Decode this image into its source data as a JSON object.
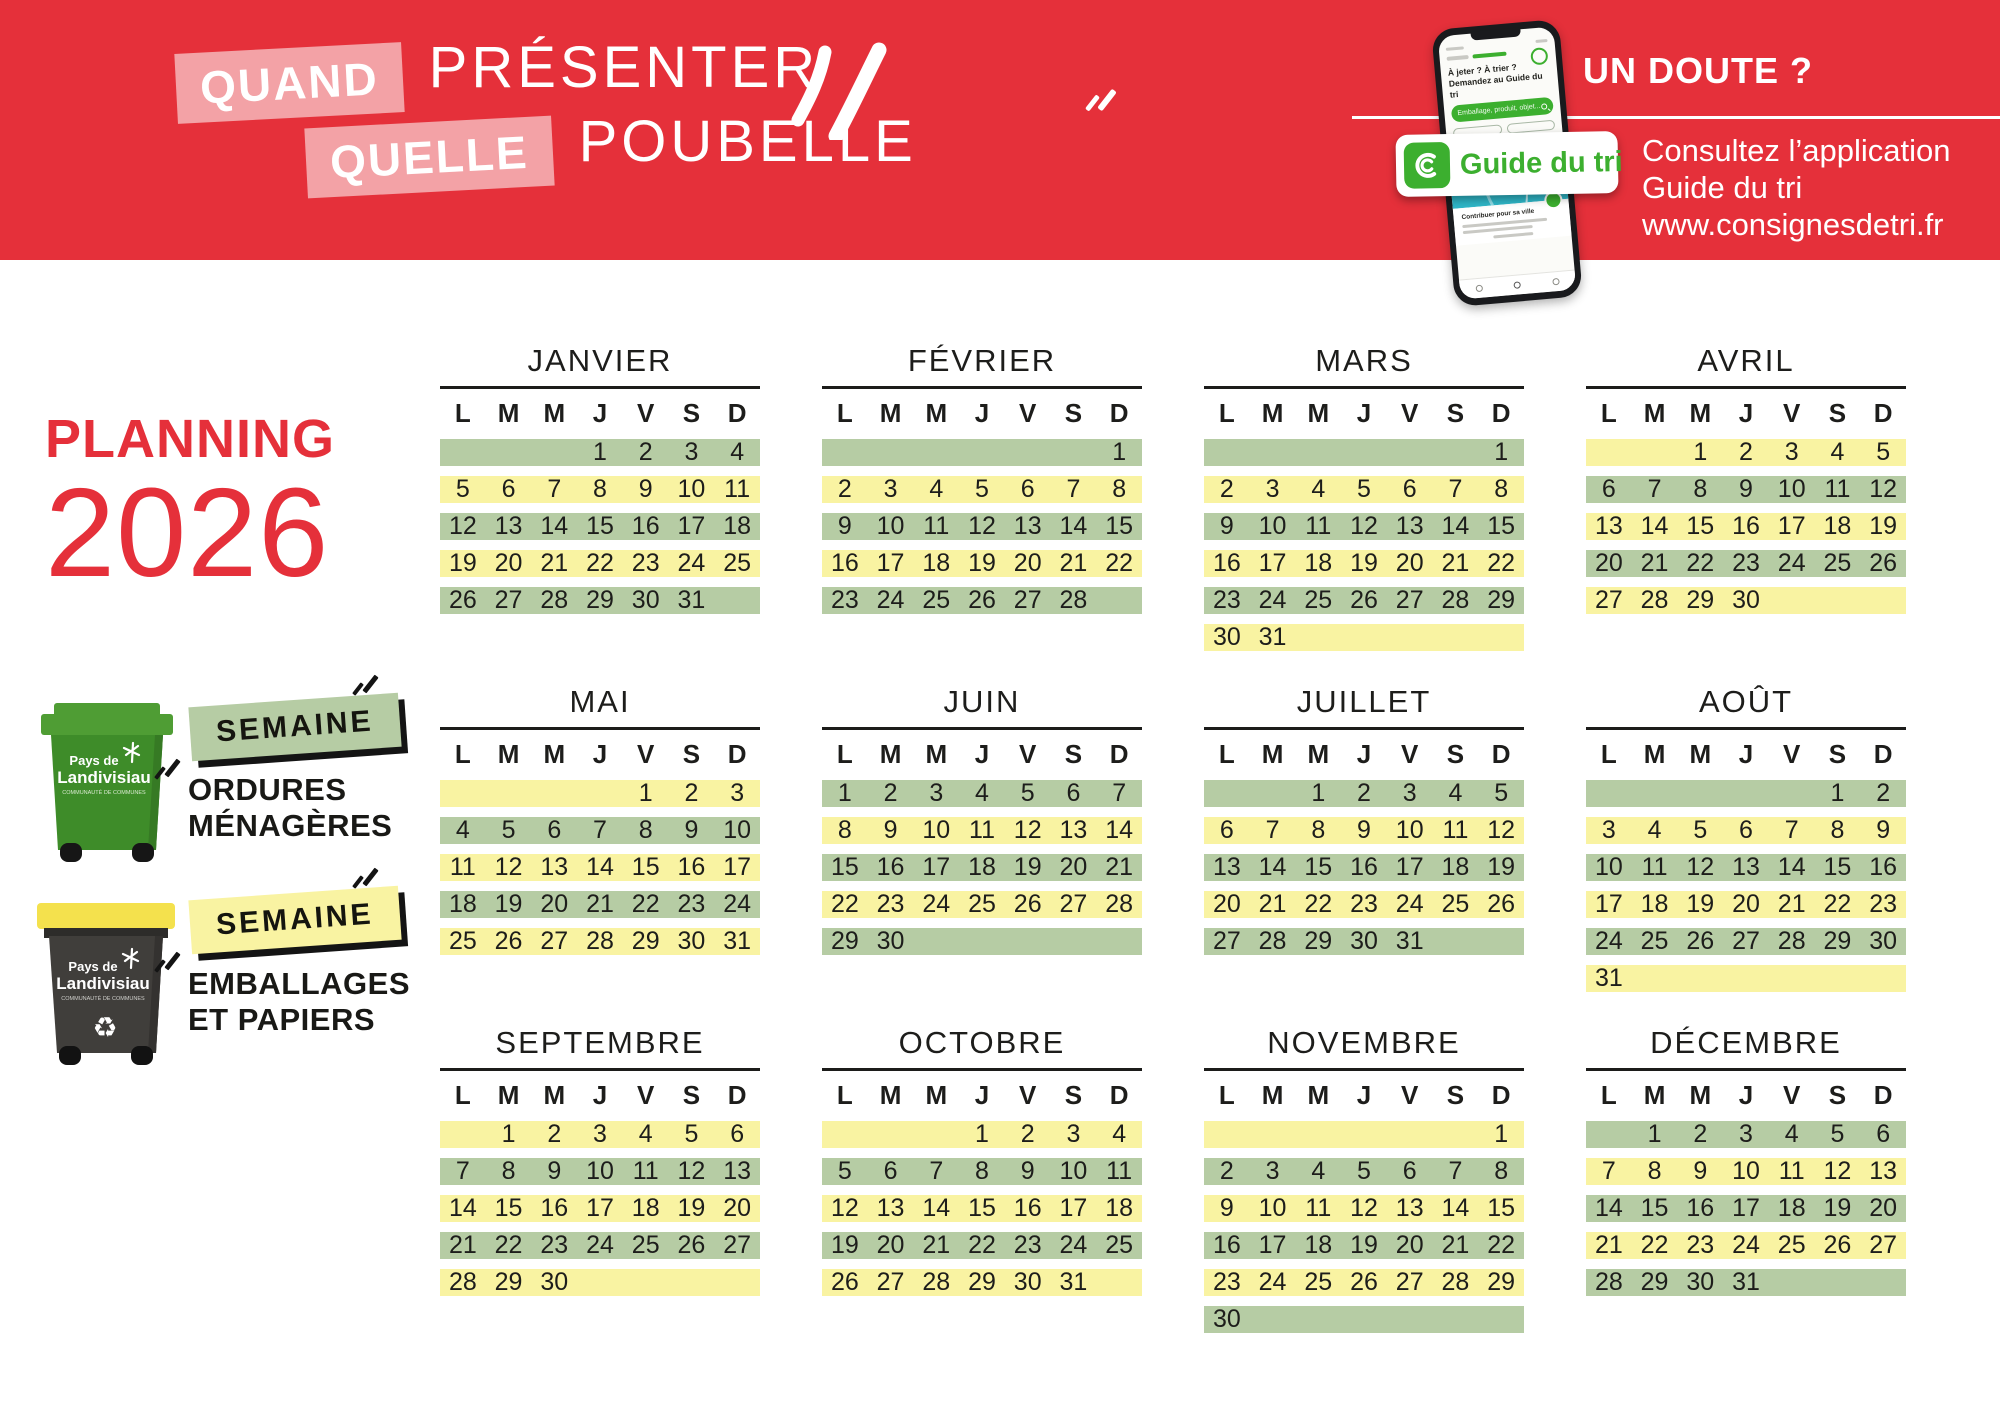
{
  "palette": {
    "red": "#e5303a",
    "pink": "#f3a2a6",
    "green_band": "#b6cca4",
    "yellow_band": "#f9f3a2",
    "app_green": "#3caf2f",
    "ink": "#1d1d1b",
    "bin_green": "#3e8c29",
    "bin_green_lid": "#4f9d34",
    "bin_dark": "#403e3b",
    "bin_yellow_lid": "#f4e14d",
    "map_teal": "#2fb7c8"
  },
  "banner": {
    "title_line1_tag": "QUAND",
    "title_line1_rest": "PRÉSENTER",
    "title_line2_tag": "QUELLE",
    "title_line2_rest": "POUBELLE",
    "doubt": "UN DOUTE ?",
    "consult_line1": "Consultez l’application",
    "consult_line2": "Guide du tri",
    "consult_line3": "www.consignesdetri.fr",
    "badge_label": "Guide du tri"
  },
  "phone": {
    "question_line1": "À jeter ? À trier ?",
    "question_line2": "Demandez au Guide du tri",
    "search_placeholder": "Emballage, produit, objet...",
    "participate": "Je participe",
    "contribute": "Contribuer pour sa ville"
  },
  "planning": {
    "title": "PLANNING",
    "year": "2026"
  },
  "legend": {
    "green": {
      "tag": "SEMAINE",
      "line1": "ORDURES",
      "line2": "MÉNAGÈRES"
    },
    "yellow": {
      "tag": "SEMAINE",
      "line1": "EMBALLAGES",
      "line2": "ET PAPIERS"
    }
  },
  "bin_logo": {
    "line1": "Pays de",
    "line2": "Landivisiau",
    "line3": "COMMUNAUTÉ DE COMMUNES"
  },
  "icons": {
    "recycle": "♻"
  },
  "calendar": {
    "day_headers": [
      "L",
      "M",
      "M",
      "J",
      "V",
      "S",
      "D"
    ],
    "months": [
      {
        "name": "JANVIER",
        "weeks": [
          {
            "color": "green",
            "days": [
              "",
              "",
              "",
              "1",
              "2",
              "3",
              "4"
            ]
          },
          {
            "color": "yellow",
            "days": [
              "5",
              "6",
              "7",
              "8",
              "9",
              "10",
              "11"
            ]
          },
          {
            "color": "green",
            "days": [
              "12",
              "13",
              "14",
              "15",
              "16",
              "17",
              "18"
            ]
          },
          {
            "color": "yellow",
            "days": [
              "19",
              "20",
              "21",
              "22",
              "23",
              "24",
              "25"
            ]
          },
          {
            "color": "green",
            "days": [
              "26",
              "27",
              "28",
              "29",
              "30",
              "31",
              ""
            ]
          }
        ]
      },
      {
        "name": "FÉVRIER",
        "weeks": [
          {
            "color": "green",
            "days": [
              "",
              "",
              "",
              "",
              "",
              "",
              "1"
            ]
          },
          {
            "color": "yellow",
            "days": [
              "2",
              "3",
              "4",
              "5",
              "6",
              "7",
              "8"
            ]
          },
          {
            "color": "green",
            "days": [
              "9",
              "10",
              "11",
              "12",
              "13",
              "14",
              "15"
            ]
          },
          {
            "color": "yellow",
            "days": [
              "16",
              "17",
              "18",
              "19",
              "20",
              "21",
              "22"
            ]
          },
          {
            "color": "green",
            "days": [
              "23",
              "24",
              "25",
              "26",
              "27",
              "28",
              ""
            ]
          }
        ]
      },
      {
        "name": "MARS",
        "weeks": [
          {
            "color": "green",
            "days": [
              "",
              "",
              "",
              "",
              "",
              "",
              "1"
            ]
          },
          {
            "color": "yellow",
            "days": [
              "2",
              "3",
              "4",
              "5",
              "6",
              "7",
              "8"
            ]
          },
          {
            "color": "green",
            "days": [
              "9",
              "10",
              "11",
              "12",
              "13",
              "14",
              "15"
            ]
          },
          {
            "color": "yellow",
            "days": [
              "16",
              "17",
              "18",
              "19",
              "20",
              "21",
              "22"
            ]
          },
          {
            "color": "green",
            "days": [
              "23",
              "24",
              "25",
              "26",
              "27",
              "28",
              "29"
            ]
          },
          {
            "color": "yellow",
            "days": [
              "30",
              "31",
              "",
              "",
              "",
              "",
              ""
            ]
          }
        ]
      },
      {
        "name": "AVRIL",
        "weeks": [
          {
            "color": "yellow",
            "days": [
              "",
              "",
              "1",
              "2",
              "3",
              "4",
              "5"
            ]
          },
          {
            "color": "green",
            "days": [
              "6",
              "7",
              "8",
              "9",
              "10",
              "11",
              "12"
            ]
          },
          {
            "color": "yellow",
            "days": [
              "13",
              "14",
              "15",
              "16",
              "17",
              "18",
              "19"
            ]
          },
          {
            "color": "green",
            "days": [
              "20",
              "21",
              "22",
              "23",
              "24",
              "25",
              "26"
            ]
          },
          {
            "color": "yellow",
            "days": [
              "27",
              "28",
              "29",
              "30",
              "",
              "",
              ""
            ]
          }
        ]
      },
      {
        "name": "MAI",
        "weeks": [
          {
            "color": "yellow",
            "days": [
              "",
              "",
              "",
              "",
              "1",
              "2",
              "3"
            ]
          },
          {
            "color": "green",
            "days": [
              "4",
              "5",
              "6",
              "7",
              "8",
              "9",
              "10"
            ]
          },
          {
            "color": "yellow",
            "days": [
              "11",
              "12",
              "13",
              "14",
              "15",
              "16",
              "17"
            ]
          },
          {
            "color": "green",
            "days": [
              "18",
              "19",
              "20",
              "21",
              "22",
              "23",
              "24"
            ]
          },
          {
            "color": "yellow",
            "days": [
              "25",
              "26",
              "27",
              "28",
              "29",
              "30",
              "31"
            ]
          }
        ]
      },
      {
        "name": "JUIN",
        "weeks": [
          {
            "color": "green",
            "days": [
              "1",
              "2",
              "3",
              "4",
              "5",
              "6",
              "7"
            ]
          },
          {
            "color": "yellow",
            "days": [
              "8",
              "9",
              "10",
              "11",
              "12",
              "13",
              "14"
            ]
          },
          {
            "color": "green",
            "days": [
              "15",
              "16",
              "17",
              "18",
              "19",
              "20",
              "21"
            ]
          },
          {
            "color": "yellow",
            "days": [
              "22",
              "23",
              "24",
              "25",
              "26",
              "27",
              "28"
            ]
          },
          {
            "color": "green",
            "days": [
              "29",
              "30",
              "",
              "",
              "",
              "",
              ""
            ]
          }
        ]
      },
      {
        "name": "JUILLET",
        "weeks": [
          {
            "color": "green",
            "days": [
              "",
              "",
              "1",
              "2",
              "3",
              "4",
              "5"
            ]
          },
          {
            "color": "yellow",
            "days": [
              "6",
              "7",
              "8",
              "9",
              "10",
              "11",
              "12"
            ]
          },
          {
            "color": "green",
            "days": [
              "13",
              "14",
              "15",
              "16",
              "17",
              "18",
              "19"
            ]
          },
          {
            "color": "yellow",
            "days": [
              "20",
              "21",
              "22",
              "23",
              "24",
              "25",
              "26"
            ]
          },
          {
            "color": "green",
            "days": [
              "27",
              "28",
              "29",
              "30",
              "31",
              "",
              ""
            ]
          }
        ]
      },
      {
        "name": "AOÛT",
        "weeks": [
          {
            "color": "green",
            "days": [
              "",
              "",
              "",
              "",
              "",
              "1",
              "2"
            ]
          },
          {
            "color": "yellow",
            "days": [
              "3",
              "4",
              "5",
              "6",
              "7",
              "8",
              "9"
            ]
          },
          {
            "color": "green",
            "days": [
              "10",
              "11",
              "12",
              "13",
              "14",
              "15",
              "16"
            ]
          },
          {
            "color": "yellow",
            "days": [
              "17",
              "18",
              "19",
              "20",
              "21",
              "22",
              "23"
            ]
          },
          {
            "color": "green",
            "days": [
              "24",
              "25",
              "26",
              "27",
              "28",
              "29",
              "30"
            ]
          },
          {
            "color": "yellow",
            "days": [
              "31",
              "",
              "",
              "",
              "",
              "",
              ""
            ]
          }
        ]
      },
      {
        "name": "SEPTEMBRE",
        "weeks": [
          {
            "color": "yellow",
            "days": [
              "",
              "1",
              "2",
              "3",
              "4",
              "5",
              "6"
            ]
          },
          {
            "color": "green",
            "days": [
              "7",
              "8",
              "9",
              "10",
              "11",
              "12",
              "13"
            ]
          },
          {
            "color": "yellow",
            "days": [
              "14",
              "15",
              "16",
              "17",
              "18",
              "19",
              "20"
            ]
          },
          {
            "color": "green",
            "days": [
              "21",
              "22",
              "23",
              "24",
              "25",
              "26",
              "27"
            ]
          },
          {
            "color": "yellow",
            "days": [
              "28",
              "29",
              "30",
              "",
              "",
              "",
              ""
            ]
          }
        ]
      },
      {
        "name": "OCTOBRE",
        "weeks": [
          {
            "color": "yellow",
            "days": [
              "",
              "",
              "",
              "1",
              "2",
              "3",
              "4"
            ]
          },
          {
            "color": "green",
            "days": [
              "5",
              "6",
              "7",
              "8",
              "9",
              "10",
              "11"
            ]
          },
          {
            "color": "yellow",
            "days": [
              "12",
              "13",
              "14",
              "15",
              "16",
              "17",
              "18"
            ]
          },
          {
            "color": "green",
            "days": [
              "19",
              "20",
              "21",
              "22",
              "23",
              "24",
              "25"
            ]
          },
          {
            "color": "yellow",
            "days": [
              "26",
              "27",
              "28",
              "29",
              "30",
              "31",
              ""
            ]
          }
        ]
      },
      {
        "name": "NOVEMBRE",
        "weeks": [
          {
            "color": "yellow",
            "days": [
              "",
              "",
              "",
              "",
              "",
              "",
              "1"
            ]
          },
          {
            "color": "green",
            "days": [
              "2",
              "3",
              "4",
              "5",
              "6",
              "7",
              "8"
            ]
          },
          {
            "color": "yellow",
            "days": [
              "9",
              "10",
              "11",
              "12",
              "13",
              "14",
              "15"
            ]
          },
          {
            "color": "green",
            "days": [
              "16",
              "17",
              "18",
              "19",
              "20",
              "21",
              "22"
            ]
          },
          {
            "color": "yellow",
            "days": [
              "23",
              "24",
              "25",
              "26",
              "27",
              "28",
              "29"
            ]
          },
          {
            "color": "green",
            "days": [
              "30",
              "",
              "",
              "",
              "",
              "",
              ""
            ]
          }
        ]
      },
      {
        "name": "DÉCEMBRE",
        "weeks": [
          {
            "color": "green",
            "days": [
              "",
              "1",
              "2",
              "3",
              "4",
              "5",
              "6"
            ]
          },
          {
            "color": "yellow",
            "days": [
              "7",
              "8",
              "9",
              "10",
              "11",
              "12",
              "13"
            ]
          },
          {
            "color": "green",
            "days": [
              "14",
              "15",
              "16",
              "17",
              "18",
              "19",
              "20"
            ]
          },
          {
            "color": "yellow",
            "days": [
              "21",
              "22",
              "23",
              "24",
              "25",
              "26",
              "27"
            ]
          },
          {
            "color": "green",
            "days": [
              "28",
              "29",
              "30",
              "31",
              "",
              "",
              ""
            ]
          }
        ]
      }
    ]
  }
}
